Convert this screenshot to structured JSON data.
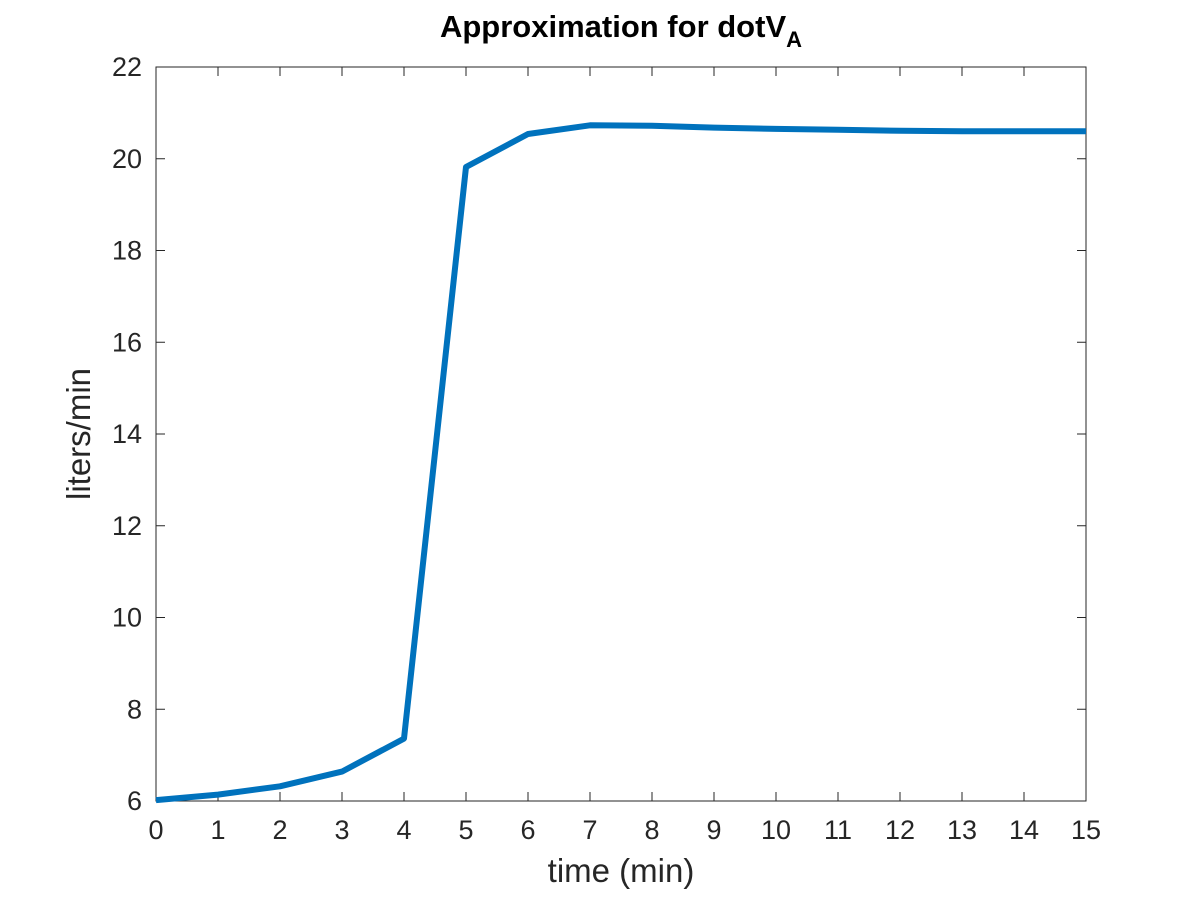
{
  "chart_data": {
    "type": "line",
    "title_main": "Approximation for dotV",
    "title_subscript": "A",
    "xlabel": "time (min)",
    "ylabel": "liters/min",
    "xlim": [
      0,
      15
    ],
    "ylim": [
      6,
      22
    ],
    "x_ticks": [
      0,
      1,
      2,
      3,
      4,
      5,
      6,
      7,
      8,
      9,
      10,
      11,
      12,
      13,
      14,
      15
    ],
    "y_ticks": [
      6,
      8,
      10,
      12,
      14,
      16,
      18,
      20,
      22
    ],
    "grid": false,
    "series": [
      {
        "color": "#0072BD",
        "x": [
          0,
          1,
          2,
          3,
          4,
          5,
          6,
          7,
          8,
          9,
          10,
          11,
          12,
          13,
          14,
          15
        ],
        "y": [
          6.02,
          6.14,
          6.32,
          6.64,
          7.36,
          19.82,
          20.54,
          20.73,
          20.72,
          20.68,
          20.65,
          20.63,
          20.61,
          20.6,
          20.6,
          20.6
        ]
      }
    ]
  }
}
